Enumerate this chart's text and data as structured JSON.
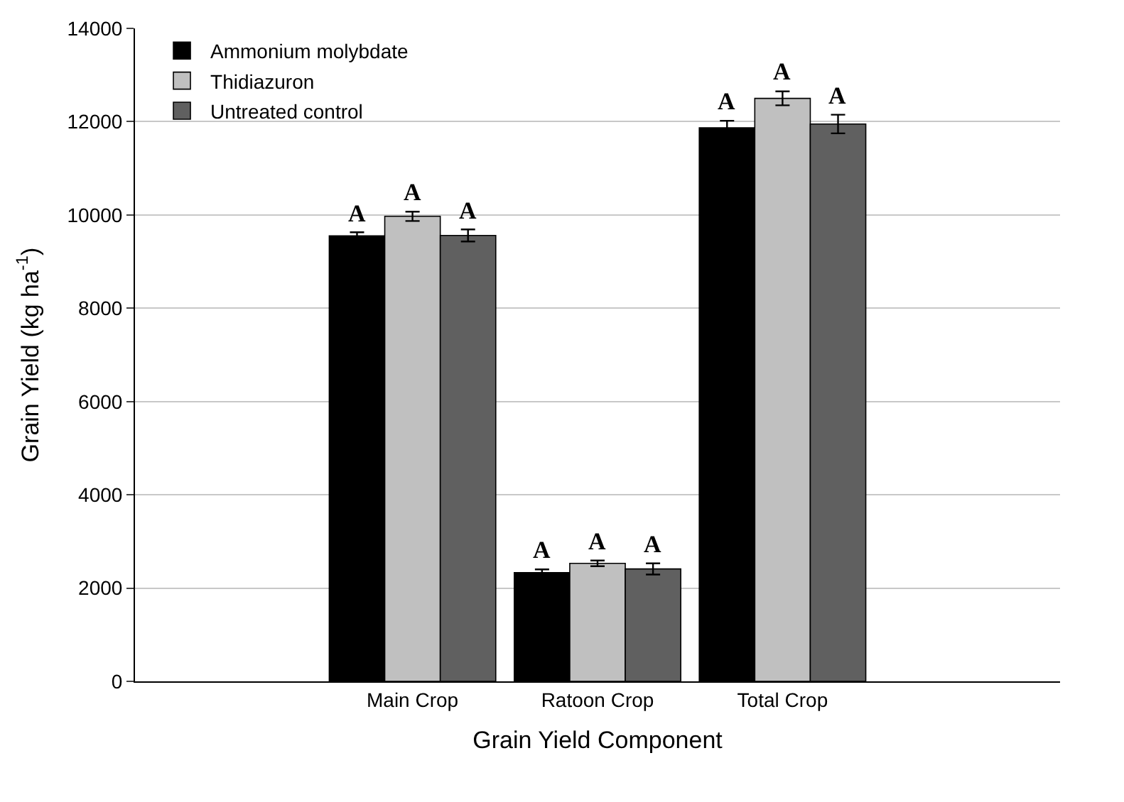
{
  "chart_data": {
    "type": "bar",
    "xlabel": "Grain Yield Component",
    "ylabel": "Grain Yield (kg ha$^{-1}$)",
    "categories": [
      null,
      "Main Crop",
      "Ratoon Crop",
      "Total Crop",
      null
    ],
    "series": [
      {
        "name": "Ammonium molybdate",
        "color": "#000000",
        "values": [
          null,
          9550,
          2330,
          11870,
          null
        ],
        "errors": [
          null,
          80,
          70,
          150,
          null
        ]
      },
      {
        "name": "Thidiazuron",
        "color": "#c0c0c0",
        "values": [
          null,
          9970,
          2530,
          12500,
          null
        ],
        "errors": [
          null,
          100,
          60,
          150,
          null
        ]
      },
      {
        "name": "Untreated control",
        "color": "#606060",
        "values": [
          null,
          9560,
          2410,
          11950,
          null
        ],
        "errors": [
          null,
          130,
          120,
          200,
          null
        ]
      }
    ],
    "annotations": [
      "A",
      "A",
      "A",
      "A",
      "A",
      "A",
      "A",
      "A",
      "A"
    ],
    "ylim": [
      0,
      14000
    ],
    "yticks": [
      0,
      2000,
      4000,
      6000,
      8000,
      10000,
      12000,
      14000
    ],
    "grid": "y",
    "legend": "top left"
  }
}
